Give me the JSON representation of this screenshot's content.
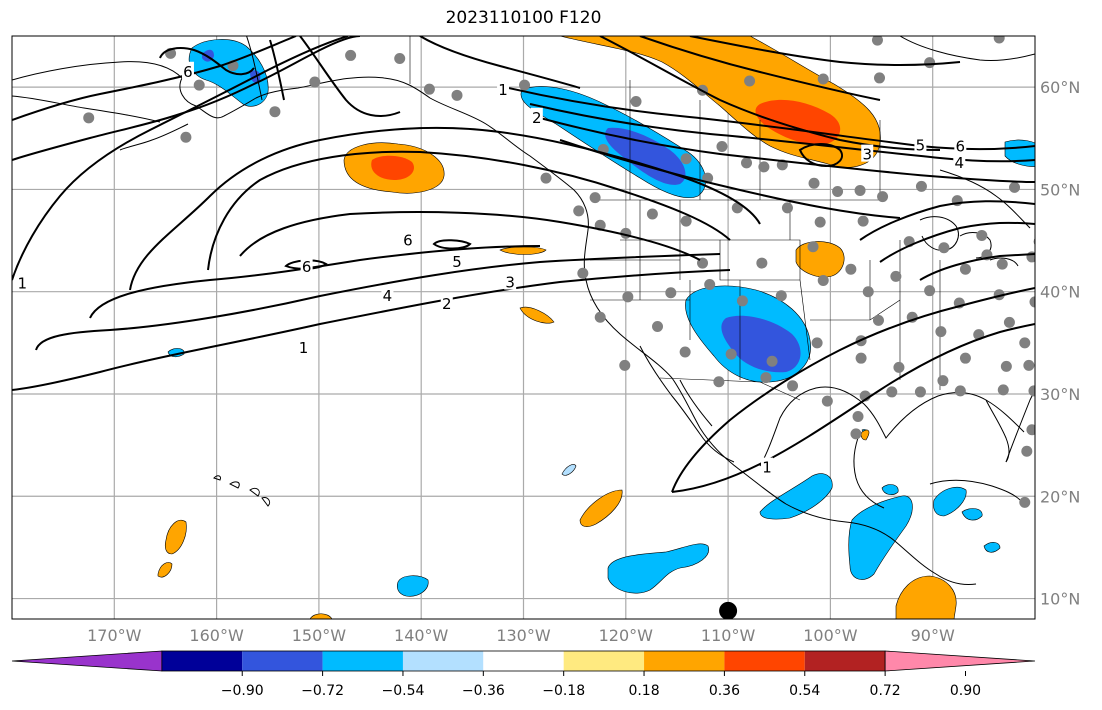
{
  "title": "2023110100 F120",
  "map": {
    "lon_range": [
      -180,
      -80
    ],
    "lat_range": [
      8,
      65
    ],
    "lat_ticks": [
      {
        "value": 10,
        "label": "10°N"
      },
      {
        "value": 20,
        "label": "20°N"
      },
      {
        "value": 30,
        "label": "30°N"
      },
      {
        "value": 40,
        "label": "40°N"
      },
      {
        "value": 50,
        "label": "50°N"
      },
      {
        "value": 60,
        "label": "60°N"
      }
    ],
    "lon_ticks": [
      {
        "value": -170,
        "label": "170°W"
      },
      {
        "value": -160,
        "label": "160°W"
      },
      {
        "value": -150,
        "label": "150°W"
      },
      {
        "value": -140,
        "label": "140°W"
      },
      {
        "value": -130,
        "label": "130°W"
      },
      {
        "value": -120,
        "label": "120°W"
      },
      {
        "value": -110,
        "label": "110°W"
      },
      {
        "value": -100,
        "label": "100°W"
      },
      {
        "value": -90,
        "label": "90°W"
      }
    ],
    "grid": true,
    "contour_labels": [
      {
        "text": "1",
        "lon": -179,
        "lat": 40.9
      },
      {
        "text": "1",
        "lon": -151.5,
        "lat": 34.6
      },
      {
        "text": "2",
        "lon": -137.5,
        "lat": 38.9
      },
      {
        "text": "3",
        "lon": -131.3,
        "lat": 41.0
      },
      {
        "text": "4",
        "lon": -143.3,
        "lat": 39.7
      },
      {
        "text": "5",
        "lon": -136.5,
        "lat": 43.0
      },
      {
        "text": "6",
        "lon": -141.3,
        "lat": 45.1
      },
      {
        "text": "6",
        "lon": -151.2,
        "lat": 42.5
      },
      {
        "text": "6",
        "lon": -162.8,
        "lat": 61.6
      },
      {
        "text": "1",
        "lon": -132.0,
        "lat": 59.8
      },
      {
        "text": "2",
        "lon": -128.7,
        "lat": 57.1
      },
      {
        "text": "5",
        "lon": -91.2,
        "lat": 54.4
      },
      {
        "text": "6",
        "lon": -87.3,
        "lat": 54.3
      },
      {
        "text": "4",
        "lon": -87.4,
        "lat": 52.7
      },
      {
        "text": "3",
        "lon": -96.4,
        "lat": 53.5
      },
      {
        "text": "1",
        "lon": -106.2,
        "lat": 22.9
      }
    ],
    "stations": [
      [
        -164.5,
        63.3
      ],
      [
        -146.9,
        63.1
      ],
      [
        -142.1,
        62.8
      ],
      [
        -158.4,
        62.1
      ],
      [
        -150.4,
        60.5
      ],
      [
        -161.7,
        60.2
      ],
      [
        -139.2,
        59.8
      ],
      [
        -136.5,
        59.2
      ],
      [
        -129.9,
        60.2
      ],
      [
        -119.0,
        58.6
      ],
      [
        -112.5,
        59.7
      ],
      [
        -107.9,
        60.6
      ],
      [
        -100.7,
        60.8
      ],
      [
        -95.2,
        60.9
      ],
      [
        -90.3,
        62.4
      ],
      [
        -83.5,
        64.8
      ],
      [
        -95.4,
        64.6
      ],
      [
        -172.5,
        57.0
      ],
      [
        -163.0,
        55.1
      ],
      [
        -154.3,
        57.6
      ],
      [
        -127.8,
        51.1
      ],
      [
        -122.2,
        53.9
      ],
      [
        -114.1,
        53.0
      ],
      [
        -112.0,
        51.1
      ],
      [
        -110.6,
        54.2
      ],
      [
        -108.2,
        52.6
      ],
      [
        -106.5,
        52.2
      ],
      [
        -104.7,
        52.4
      ],
      [
        -101.6,
        50.6
      ],
      [
        -99.3,
        49.8
      ],
      [
        -97.1,
        49.9
      ],
      [
        -94.9,
        49.3
      ],
      [
        -91.1,
        50.3
      ],
      [
        -87.6,
        48.9
      ],
      [
        -82.0,
        50.2
      ],
      [
        -85.2,
        45.5
      ],
      [
        -79.3,
        46.4
      ],
      [
        -79.6,
        44.9
      ],
      [
        -123.0,
        49.2
      ],
      [
        -124.6,
        47.9
      ],
      [
        -122.5,
        46.5
      ],
      [
        -117.4,
        47.6
      ],
      [
        -120.0,
        45.7
      ],
      [
        -114.1,
        46.9
      ],
      [
        -109.1,
        48.2
      ],
      [
        -104.2,
        48.2
      ],
      [
        -101.0,
        46.8
      ],
      [
        -96.8,
        46.9
      ],
      [
        -92.3,
        44.9
      ],
      [
        -88.9,
        44.3
      ],
      [
        -84.7,
        43.6
      ],
      [
        -86.8,
        42.2
      ],
      [
        -83.2,
        42.7
      ],
      [
        -80.3,
        43.4
      ],
      [
        -112.5,
        42.8
      ],
      [
        -106.7,
        42.8
      ],
      [
        -101.7,
        44.4
      ],
      [
        -98.0,
        42.2
      ],
      [
        -93.6,
        41.5
      ],
      [
        -90.3,
        40.1
      ],
      [
        -87.4,
        38.9
      ],
      [
        -83.5,
        39.7
      ],
      [
        -80.0,
        39.0
      ],
      [
        -124.2,
        41.8
      ],
      [
        -119.8,
        39.5
      ],
      [
        -115.6,
        39.9
      ],
      [
        -111.8,
        40.7
      ],
      [
        -108.6,
        39.1
      ],
      [
        -104.8,
        39.6
      ],
      [
        -100.7,
        41.1
      ],
      [
        -96.3,
        40.0
      ],
      [
        -95.3,
        37.2
      ],
      [
        -92.0,
        37.5
      ],
      [
        -89.2,
        36.1
      ],
      [
        -85.5,
        35.8
      ],
      [
        -81.0,
        35.0
      ],
      [
        -82.5,
        37.0
      ],
      [
        -122.5,
        37.5
      ],
      [
        -116.9,
        36.6
      ],
      [
        -114.2,
        34.1
      ],
      [
        -120.1,
        32.8
      ],
      [
        -109.7,
        33.9
      ],
      [
        -105.7,
        33.2
      ],
      [
        -101.3,
        35.0
      ],
      [
        -97.0,
        35.2
      ],
      [
        -97.0,
        33.5
      ],
      [
        -93.3,
        32.6
      ],
      [
        -89.0,
        31.3
      ],
      [
        -86.8,
        33.5
      ],
      [
        -82.8,
        32.7
      ],
      [
        -80.6,
        32.8
      ],
      [
        -80.1,
        30.3
      ],
      [
        -83.1,
        30.4
      ],
      [
        -87.3,
        30.3
      ],
      [
        -91.2,
        30.2
      ],
      [
        -94.0,
        30.2
      ],
      [
        -96.6,
        29.8
      ],
      [
        -100.3,
        29.3
      ],
      [
        -103.7,
        30.8
      ],
      [
        -106.3,
        31.6
      ],
      [
        -110.9,
        31.2
      ],
      [
        -97.3,
        27.8
      ],
      [
        -97.5,
        26.1
      ],
      [
        -80.3,
        26.5
      ],
      [
        -80.8,
        24.4
      ],
      [
        -81.0,
        19.4
      ]
    ],
    "marker": {
      "lon": -110.0,
      "lat": 8.8
    }
  },
  "colorbar": {
    "colors": [
      "#9933cc",
      "#000099",
      "#3355dd",
      "#00bbff",
      "#b3e0ff",
      "#ffffff",
      "#ffea80",
      "#ffa500",
      "#ff4500",
      "#b22222",
      "#ff88aa"
    ],
    "tick_labels": [
      "−0.90",
      "−0.72",
      "−0.54",
      "−0.36",
      "−0.18",
      "0.18",
      "0.36",
      "0.54",
      "0.72",
      "0.90"
    ]
  }
}
